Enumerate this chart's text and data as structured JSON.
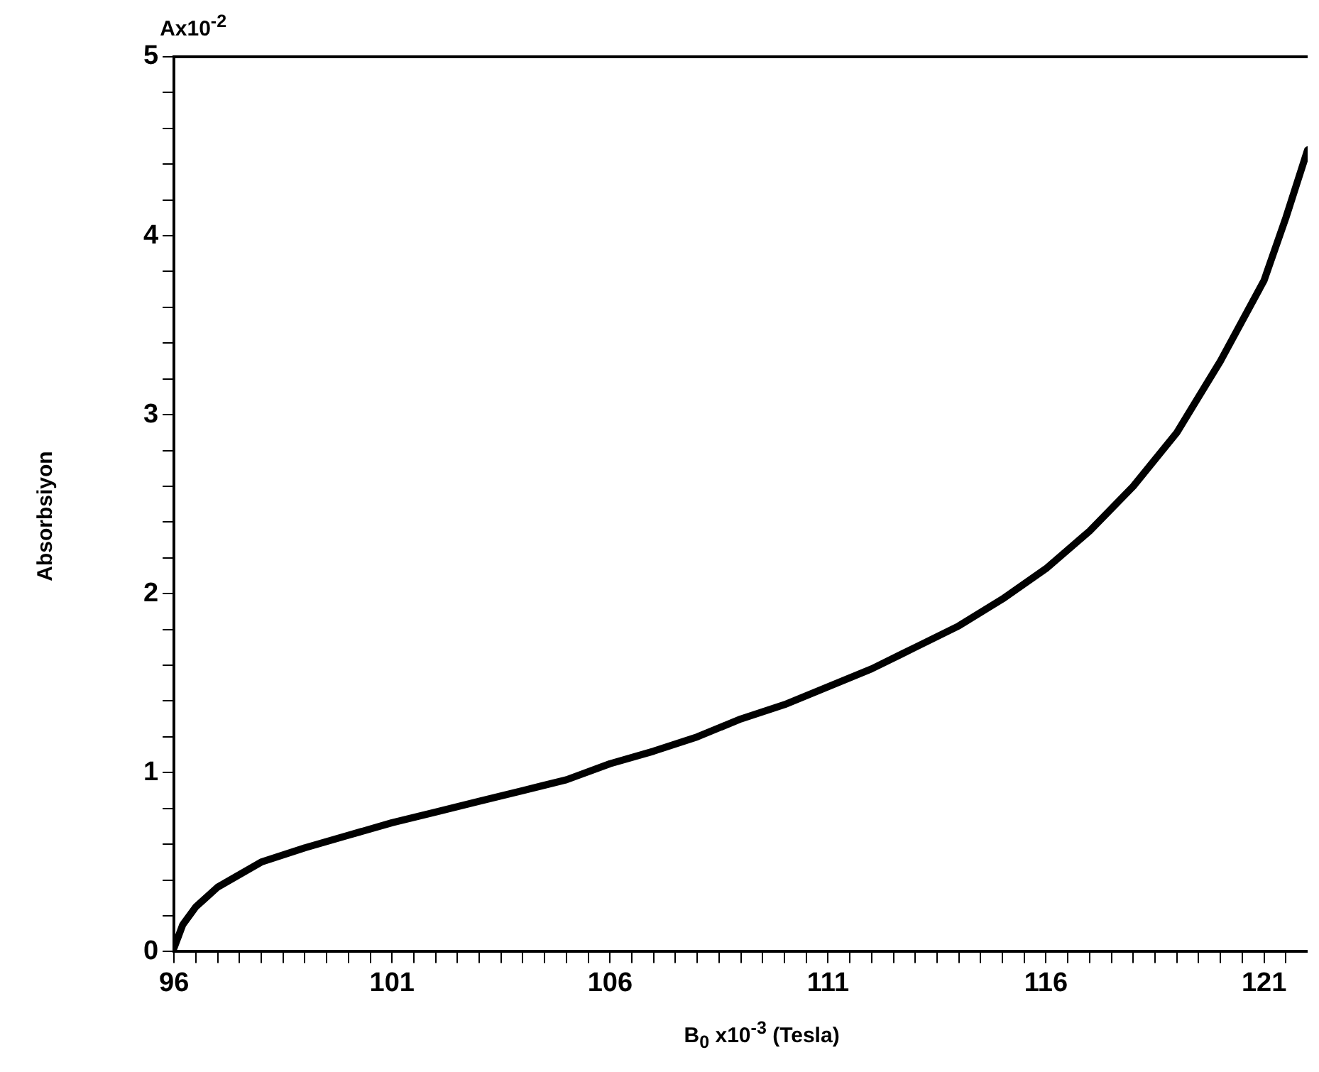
{
  "chart_data": {
    "type": "line",
    "ylabel": "Absorbsiyon",
    "xlabel": "B$_{0}$ x10$^{-3}$   (Tesla)",
    "annotations": [
      "Ax10$^{-2}$"
    ],
    "xlim": [
      96,
      122
    ],
    "xticks": [
      96,
      {
        "value": 96.5,
        "label": null
      },
      {
        "value": 97,
        "label": null
      },
      {
        "value": 97.5,
        "label": null
      },
      {
        "value": 98,
        "label": null
      },
      {
        "value": 98.5,
        "label": null
      },
      {
        "value": 99,
        "label": null
      },
      {
        "value": 99.5,
        "label": null
      },
      {
        "value": 100,
        "label": null
      },
      {
        "value": 100.5,
        "label": null
      },
      101,
      {
        "value": 101.5,
        "label": null
      },
      {
        "value": 102,
        "label": null
      },
      {
        "value": 102.5,
        "label": null
      },
      {
        "value": 103,
        "label": null
      },
      {
        "value": 103.5,
        "label": null
      },
      {
        "value": 104,
        "label": null
      },
      {
        "value": 104.5,
        "label": null
      },
      {
        "value": 105,
        "label": null
      },
      {
        "value": 105.5,
        "label": null
      },
      106,
      {
        "value": 106.5,
        "label": null
      },
      {
        "value": 107,
        "label": null
      },
      {
        "value": 107.5,
        "label": null
      },
      {
        "value": 108,
        "label": null
      },
      {
        "value": 108.5,
        "label": null
      },
      {
        "value": 109,
        "label": null
      },
      {
        "value": 109.5,
        "label": null
      },
      {
        "value": 110,
        "label": null
      },
      {
        "value": 110.5,
        "label": null
      },
      111,
      {
        "value": 111.5,
        "label": null
      },
      {
        "value": 112,
        "label": null
      },
      {
        "value": 112.5,
        "label": null
      },
      {
        "value": 113,
        "label": null
      },
      {
        "value": 113.5,
        "label": null
      },
      {
        "value": 114,
        "label": null
      },
      {
        "value": 114.5,
        "label": null
      },
      {
        "value": 115,
        "label": null
      },
      {
        "value": 115.5,
        "label": null
      },
      116,
      {
        "value": 116.5,
        "label": null
      },
      {
        "value": 117,
        "label": null
      },
      {
        "value": 117.5,
        "label": null
      },
      {
        "value": 118,
        "label": null
      },
      {
        "value": 118.5,
        "label": null
      },
      {
        "value": 119,
        "label": null
      },
      {
        "value": 119.5,
        "label": null
      },
      {
        "value": 120,
        "label": null
      },
      {
        "value": 120.5,
        "label": null
      },
      121,
      {
        "value": 121.5,
        "label": null
      }
    ],
    "ylim": [
      0,
      5
    ],
    "yticks": [
      0,
      {
        "value": 0.2,
        "label": null
      },
      {
        "value": 0.4,
        "label": null
      },
      {
        "value": 0.6,
        "label": null
      },
      {
        "value": 0.8,
        "label": null
      },
      1,
      {
        "value": 1.2,
        "label": null
      },
      {
        "value": 1.4,
        "label": null
      },
      {
        "value": 1.6,
        "label": null
      },
      {
        "value": 1.8,
        "label": null
      },
      2,
      {
        "value": 2.2,
        "label": null
      },
      {
        "value": 2.4,
        "label": null
      },
      {
        "value": 2.6,
        "label": null
      },
      {
        "value": 2.8,
        "label": null
      },
      3,
      {
        "value": 3.2,
        "label": null
      },
      {
        "value": 3.4,
        "label": null
      },
      {
        "value": 3.6,
        "label": null
      },
      {
        "value": 3.8,
        "label": null
      },
      4,
      {
        "value": 4.2,
        "label": null
      },
      {
        "value": 4.4,
        "label": null
      },
      {
        "value": 4.6,
        "label": null
      },
      {
        "value": 4.8,
        "label": null
      },
      5
    ],
    "grid": false,
    "legend": false,
    "marker": "none",
    "line_style": "solid",
    "series": [
      {
        "color": "#000000",
        "x": [
          96,
          96.2,
          96.5,
          97,
          98,
          99,
          100,
          101,
          102,
          103,
          104,
          105,
          106,
          107,
          108,
          109,
          110,
          111,
          112,
          113,
          114,
          115,
          116,
          117,
          118,
          119,
          120,
          121,
          121.5,
          122
        ],
        "values": [
          0.02,
          0.15,
          0.25,
          0.36,
          0.5,
          0.58,
          0.65,
          0.72,
          0.78,
          0.84,
          0.9,
          0.96,
          1.05,
          1.12,
          1.2,
          1.3,
          1.38,
          1.48,
          1.58,
          1.7,
          1.82,
          1.97,
          2.14,
          2.35,
          2.6,
          2.9,
          3.3,
          3.75,
          4.1,
          4.48
        ]
      }
    ]
  }
}
